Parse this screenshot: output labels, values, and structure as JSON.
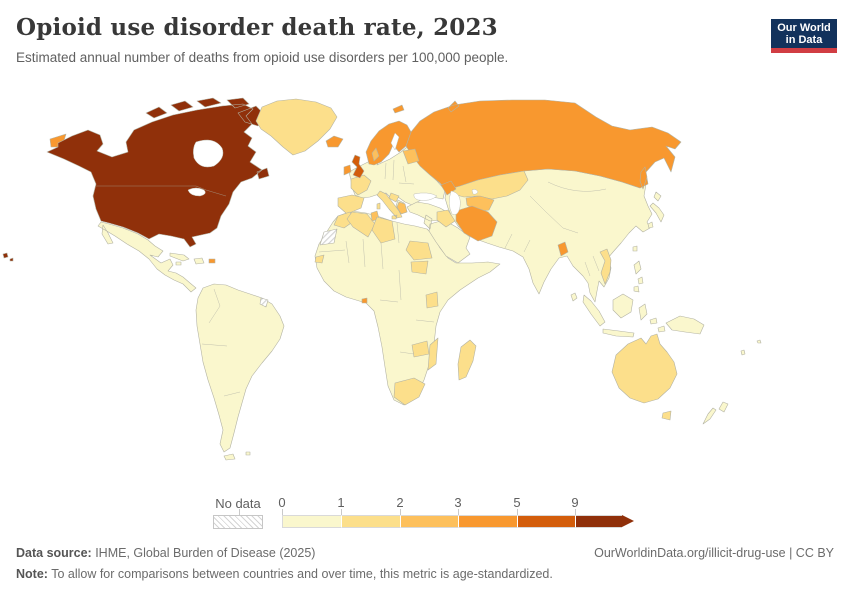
{
  "header": {
    "title": "Opioid use disorder death rate, 2023",
    "subtitle": "Estimated annual number of deaths from opioid use disorders per 100,000 people."
  },
  "logo": {
    "line1": "Our World",
    "line2": "in Data",
    "bg_color": "#12325c",
    "accent_color": "#d13d43"
  },
  "legend": {
    "no_data_label": "No data",
    "ticks": [
      "0",
      "1",
      "2",
      "3",
      "5",
      "9"
    ]
  },
  "footer": {
    "source_label": "Data source:",
    "source_text": " IHME, Global Burden of Disease (2025)",
    "link_text": "OurWorldinData.org/illicit-drug-use | CC BY",
    "note_label": "Note:",
    "note_text": " To allow for comparisons between countries and over time, this metric is age-standardized."
  },
  "chart_data": {
    "type": "heatmap",
    "subtype": "choropleth-world-map",
    "title": "Opioid use disorder death rate, 2023",
    "unit": "deaths per 100,000 people",
    "bin_edges": [
      0,
      1,
      2,
      3,
      5,
      9
    ],
    "legend_bins": [
      {
        "key": "0-1",
        "range": "0–1",
        "color": "#faf7cd"
      },
      {
        "key": "1-2",
        "range": "1–2",
        "color": "#fcdf8b"
      },
      {
        "key": "2-3",
        "range": "2–3",
        "color": "#fdc05c"
      },
      {
        "key": "3-5",
        "range": "3–5",
        "color": "#f8982f"
      },
      {
        "key": "5-9",
        "range": "5–9",
        "color": "#d35d0b"
      },
      {
        "key": "9+",
        "range": "9+",
        "color": "#90300a"
      },
      {
        "key": "no-data",
        "range": "No data",
        "color": "hatch"
      }
    ],
    "regions": {
      "united-states-canada": {
        "label": "United States & Canada (incl. Alaska, Hawaii)",
        "bin": "9+"
      },
      "united-kingdom": {
        "label": "United Kingdom",
        "bin": "5-9"
      },
      "russia": {
        "label": "Russia",
        "bin": "3-5"
      },
      "scandinavia": {
        "label": "Norway, Sweden & Finland",
        "bin": "3-5"
      },
      "iceland": {
        "label": "Iceland",
        "bin": "3-5"
      },
      "svalbard": {
        "label": "Svalbard (Norway)",
        "bin": "3-5"
      },
      "ireland": {
        "label": "Ireland",
        "bin": "3-5"
      },
      "azerbaijan": {
        "label": "Azerbaijan",
        "bin": "3-5"
      },
      "iran": {
        "label": "Iran",
        "bin": "3-5"
      },
      "bangladesh": {
        "label": "Bangladesh",
        "bin": "3-5"
      },
      "puerto-rico": {
        "label": "Puerto Rico",
        "bin": "3-5"
      },
      "equatorial-guinea": {
        "label": "Equatorial Guinea",
        "bin": "3-5"
      },
      "baltics": {
        "label": "Estonia, Latvia & Lithuania",
        "bin": "2-3"
      },
      "denmark": {
        "label": "Denmark",
        "bin": "2-3"
      },
      "greece": {
        "label": "Greece",
        "bin": "2-3"
      },
      "tunisia": {
        "label": "Tunisia",
        "bin": "2-3"
      },
      "central-asia": {
        "label": "Turkmenistan & Uzbekistan",
        "bin": "2-3"
      },
      "greenland": {
        "label": "Greenland",
        "bin": "1-2"
      },
      "france": {
        "label": "France",
        "bin": "1-2"
      },
      "iberia": {
        "label": "Spain & Portugal",
        "bin": "1-2"
      },
      "italy": {
        "label": "Italy",
        "bin": "1-2"
      },
      "balkans": {
        "label": "Croatia & Western Balkans",
        "bin": "1-2"
      },
      "kazakhstan": {
        "label": "Kazakhstan",
        "bin": "1-2"
      },
      "iraq": {
        "label": "Iraq",
        "bin": "1-2"
      },
      "vietnam": {
        "label": "Vietnam",
        "bin": "1-2"
      },
      "australia": {
        "label": "Australia",
        "bin": "1-2"
      },
      "madagascar": {
        "label": "Madagascar",
        "bin": "1-2"
      },
      "morocco": {
        "label": "Morocco",
        "bin": "1-2"
      },
      "algeria": {
        "label": "Algeria",
        "bin": "1-2"
      },
      "libya": {
        "label": "Libya",
        "bin": "1-2"
      },
      "senegal": {
        "label": "Senegal",
        "bin": "1-2"
      },
      "sudan": {
        "label": "Sudan",
        "bin": "1-2"
      },
      "south-sudan": {
        "label": "South Sudan",
        "bin": "1-2"
      },
      "uganda": {
        "label": "Uganda / Tanzania region",
        "bin": "1-2"
      },
      "zambia": {
        "label": "Zambia",
        "bin": "1-2"
      },
      "mozambique": {
        "label": "Mozambique",
        "bin": "1-2"
      },
      "south-africa": {
        "label": "South Africa",
        "bin": "1-2"
      },
      "mexico-central-america": {
        "label": "Mexico & Central America",
        "bin": "0-1"
      },
      "caribbean": {
        "label": "Cuba, Hispaniola & Jamaica",
        "bin": "0-1"
      },
      "south-america": {
        "label": "South America",
        "bin": "0-1"
      },
      "europe": {
        "label": "Central & Eastern Europe (Germany, Poland, Ukraine...)",
        "bin": "0-1"
      },
      "asia": {
        "label": "Turkey, Arabia, China, India & mainland Asia",
        "bin": "0-1"
      },
      "east-asia-islands": {
        "label": "Japan, Philippines, Indonesia & New Guinea",
        "bin": "0-1"
      },
      "pacific-islands": {
        "label": "Pacific islands",
        "bin": "0-1"
      },
      "new-zealand": {
        "label": "New Zealand",
        "bin": "0-1"
      },
      "africa": {
        "label": "Most of Sub-Saharan Africa & Egypt",
        "bin": "0-1"
      },
      "western-sahara": {
        "label": "Western Sahara",
        "bin": "no-data"
      },
      "french-guiana": {
        "label": "French Guiana",
        "bin": "no-data"
      }
    }
  }
}
